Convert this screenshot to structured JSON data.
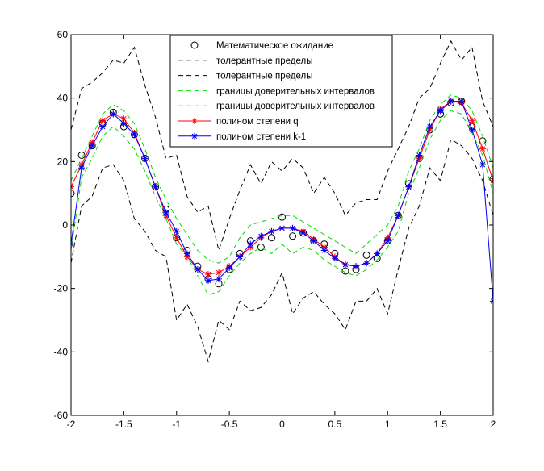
{
  "chart_data": {
    "type": "line",
    "title": "",
    "xlabel": "",
    "ylabel": "",
    "xlim": [
      -2,
      2
    ],
    "ylim": [
      -60,
      60
    ],
    "xticks": [
      -2,
      -1.5,
      -1,
      -0.5,
      0,
      0.5,
      1,
      1.5,
      2
    ],
    "xtick_labels": [
      "-2",
      "-1.5",
      "-1",
      "-0.5",
      "0",
      "0.5",
      "1",
      "1.5",
      "2"
    ],
    "yticks": [
      -60,
      -40,
      -20,
      0,
      20,
      40,
      60
    ],
    "ytick_labels": [
      "-60",
      "-40",
      "-20",
      "0",
      "20",
      "40",
      "60"
    ],
    "grid": false,
    "legend_position": "top-center",
    "x": [
      -2,
      -1.9,
      -1.8,
      -1.7,
      -1.6,
      -1.5,
      -1.4,
      -1.3,
      -1.2,
      -1.1,
      -1,
      -0.9,
      -0.8,
      -0.7,
      -0.6,
      -0.5,
      -0.4,
      -0.3,
      -0.2,
      -0.1,
      0,
      0.1,
      0.2,
      0.3,
      0.4,
      0.5,
      0.6,
      0.7,
      0.8,
      0.9,
      1,
      1.1,
      1.2,
      1.3,
      1.4,
      1.5,
      1.6,
      1.7,
      1.8,
      1.9,
      2
    ],
    "series": [
      {
        "name": "Математическое ожидание",
        "style": "circle-marker",
        "color": "#000000",
        "values": [
          10,
          22,
          25,
          32,
          35.5,
          31,
          28.5,
          21,
          12,
          5,
          -4,
          -8,
          -13,
          -17,
          -18.5,
          -14,
          -9,
          -5,
          -7,
          -4,
          2.5,
          -3.5,
          -2.5,
          -5,
          -6,
          -9,
          -14.5,
          -14,
          -9.5,
          -10.5,
          -5,
          3,
          13,
          21,
          30,
          35,
          38.5,
          39,
          31,
          26.5,
          14.5
        ]
      },
      {
        "name": "толерантные пределы",
        "style": "dashed",
        "color": "#000000",
        "values": [
          30,
          43,
          45,
          48,
          52,
          51,
          56,
          44,
          34,
          21,
          22,
          9,
          4,
          6,
          -8,
          2,
          11,
          19,
          13,
          20,
          17,
          21,
          18,
          10,
          15,
          10,
          3,
          7,
          8,
          8,
          17,
          24,
          31,
          40,
          43,
          51,
          58,
          52,
          56,
          39,
          31
        ]
      },
      {
        "name": "толерантные пределы",
        "style": "dashed",
        "color": "#000000",
        "values": [
          -12,
          6,
          9,
          18,
          19,
          14,
          2,
          -2,
          -8,
          -10,
          -30,
          -25,
          -32,
          -43,
          -30,
          -33,
          -24,
          -27,
          -26,
          -22,
          -15,
          -28,
          -23,
          -21,
          -25,
          -28,
          -33,
          -24,
          -24,
          -20,
          -28,
          -14,
          -1,
          6,
          18,
          14,
          27,
          25,
          21,
          14,
          3
        ]
      },
      {
        "name": "границы доверительных интервалов",
        "style": "dashed",
        "color": "#00dd00",
        "values": [
          14,
          21,
          28,
          35,
          38,
          36,
          32,
          24,
          15,
          8,
          2,
          -3,
          -8,
          -11,
          -12,
          -10,
          -4,
          0,
          1,
          2,
          3,
          3,
          1,
          -1,
          -3,
          -5,
          -7,
          -9,
          -6,
          -3,
          0,
          6,
          17,
          24,
          33,
          38,
          41,
          40,
          36,
          28,
          18
        ]
      },
      {
        "name": "границы доверительных интервалов",
        "style": "dashed",
        "color": "#00dd00",
        "values": [
          -8,
          15,
          21,
          28,
          31,
          28,
          24,
          17,
          9,
          2,
          -6,
          -10,
          -16,
          -22,
          -21,
          -16,
          -12,
          -9,
          -7,
          -9,
          -6,
          -9,
          -7,
          -8,
          -11,
          -13,
          -15,
          -16,
          -14,
          -11,
          -7,
          -2,
          10,
          18,
          27,
          33,
          36,
          35,
          29,
          22,
          10
        ]
      },
      {
        "name": "полином степени q",
        "style": "line-star",
        "color": "#ff0000",
        "values": [
          12,
          19,
          26,
          33,
          35,
          33.5,
          29,
          21,
          12,
          3,
          -4,
          -10,
          -14,
          -15.5,
          -15,
          -13,
          -10,
          -7,
          -4,
          -2,
          -1,
          -1,
          -2,
          -4.5,
          -7,
          -10,
          -12.5,
          -13,
          -12,
          -9,
          -4,
          3,
          12,
          21,
          30,
          36.5,
          39,
          38.5,
          33,
          24,
          14
        ]
      },
      {
        "name": "полином степени k-1",
        "style": "line-star",
        "color": "#0000ff",
        "values": [
          -6,
          18,
          25,
          31,
          35,
          32,
          28.5,
          21,
          12,
          4,
          -2,
          -9,
          -14,
          -17.5,
          -17,
          -13.5,
          -10,
          -6,
          -3.5,
          -2,
          -1,
          -1,
          -2.5,
          -5,
          -8,
          -10.5,
          -12.5,
          -13,
          -12,
          -9,
          -5,
          3,
          12,
          22,
          31,
          36,
          39,
          39,
          30,
          19,
          -24
        ]
      }
    ]
  }
}
